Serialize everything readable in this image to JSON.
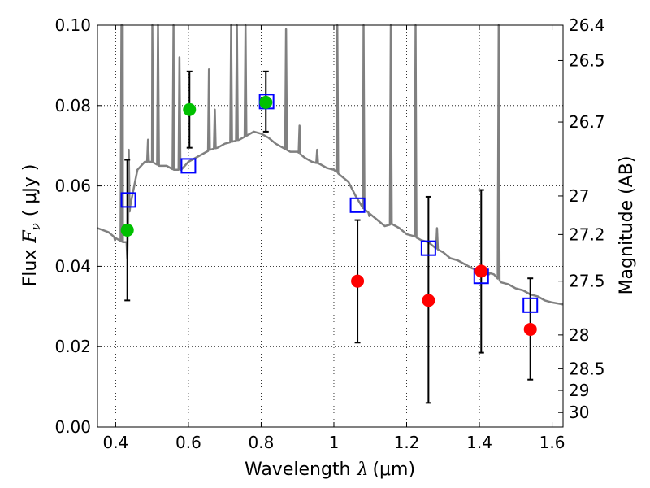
{
  "chart_data": {
    "type": "scatter",
    "xlabel_text": "Wavelength",
    "xlabel_symbol": "λ",
    "xlabel_unit": "(μm)",
    "ylabel_text": "Flux",
    "ylabel_symbol": "F",
    "ylabel_subscript": "ν",
    "ylabel_unit": "( μJy )",
    "y2label": "Magnitude (AB)",
    "xlim": [
      0.35,
      1.63
    ],
    "ylim": [
      0.0,
      0.1
    ],
    "xticks": [
      {
        "value": 0.4,
        "label": "0.4"
      },
      {
        "value": 0.6,
        "label": "0.6"
      },
      {
        "value": 0.8,
        "label": "0.8"
      },
      {
        "value": 1.0,
        "label": "1"
      },
      {
        "value": 1.2,
        "label": "1.2"
      },
      {
        "value": 1.4,
        "label": "1.4"
      },
      {
        "value": 1.6,
        "label": "1.6"
      }
    ],
    "yticks": [
      {
        "value": 0.0,
        "label": "0.00"
      },
      {
        "value": 0.02,
        "label": "0.02"
      },
      {
        "value": 0.04,
        "label": "0.04"
      },
      {
        "value": 0.06,
        "label": "0.06"
      },
      {
        "value": 0.08,
        "label": "0.08"
      },
      {
        "value": 0.1,
        "label": "0.10"
      }
    ],
    "y2ticks": [
      {
        "label": "26.4",
        "flux": 0.1
      },
      {
        "label": "26.5",
        "flux": 0.0912
      },
      {
        "label": "26.7",
        "flux": 0.0759
      },
      {
        "label": "27",
        "flux": 0.0575
      },
      {
        "label": "27.2",
        "flux": 0.0479
      },
      {
        "label": "27.5",
        "flux": 0.0363
      },
      {
        "label": "28",
        "flux": 0.0229
      },
      {
        "label": "28.5",
        "flux": 0.0145
      },
      {
        "label": "29",
        "flux": 0.0091
      },
      {
        "label": "30",
        "flux": 0.0036
      }
    ],
    "grid": true,
    "colors": {
      "model": "#808080",
      "green": "#00c000",
      "red": "#ff0000",
      "square": "#0000ff",
      "errorbar": "#000000"
    },
    "model_spectrum": {
      "continuum": [
        [
          0.35,
          0.0495
        ],
        [
          0.38,
          0.0485
        ],
        [
          0.4,
          0.047
        ],
        [
          0.42,
          0.046
        ],
        [
          0.43,
          0.046
        ],
        [
          0.44,
          0.055
        ],
        [
          0.46,
          0.064
        ],
        [
          0.48,
          0.066
        ],
        [
          0.5,
          0.066
        ],
        [
          0.52,
          0.065
        ],
        [
          0.54,
          0.065
        ],
        [
          0.56,
          0.064
        ],
        [
          0.58,
          0.064
        ],
        [
          0.6,
          0.066
        ],
        [
          0.62,
          0.067
        ],
        [
          0.64,
          0.068
        ],
        [
          0.66,
          0.069
        ],
        [
          0.68,
          0.0695
        ],
        [
          0.7,
          0.0705
        ],
        [
          0.72,
          0.071
        ],
        [
          0.74,
          0.0715
        ],
        [
          0.76,
          0.0725
        ],
        [
          0.78,
          0.0735
        ],
        [
          0.8,
          0.073
        ],
        [
          0.82,
          0.072
        ],
        [
          0.84,
          0.0705
        ],
        [
          0.86,
          0.0695
        ],
        [
          0.88,
          0.0685
        ],
        [
          0.9,
          0.0685
        ],
        [
          0.92,
          0.067
        ],
        [
          0.94,
          0.066
        ],
        [
          0.96,
          0.0655
        ],
        [
          0.98,
          0.0645
        ],
        [
          1.0,
          0.064
        ],
        [
          1.02,
          0.0625
        ],
        [
          1.04,
          0.061
        ],
        [
          1.06,
          0.0575
        ],
        [
          1.08,
          0.0545
        ],
        [
          1.1,
          0.053
        ],
        [
          1.12,
          0.0515
        ],
        [
          1.14,
          0.05
        ],
        [
          1.16,
          0.0505
        ],
        [
          1.18,
          0.0495
        ],
        [
          1.2,
          0.048
        ],
        [
          1.22,
          0.0475
        ],
        [
          1.24,
          0.0465
        ],
        [
          1.26,
          0.046
        ],
        [
          1.28,
          0.0445
        ],
        [
          1.3,
          0.0435
        ],
        [
          1.32,
          0.042
        ],
        [
          1.34,
          0.0415
        ],
        [
          1.36,
          0.0405
        ],
        [
          1.38,
          0.0395
        ],
        [
          1.4,
          0.039
        ],
        [
          1.42,
          0.0385
        ],
        [
          1.44,
          0.038
        ],
        [
          1.46,
          0.036
        ],
        [
          1.48,
          0.0355
        ],
        [
          1.5,
          0.0345
        ],
        [
          1.52,
          0.034
        ],
        [
          1.54,
          0.033
        ],
        [
          1.56,
          0.0325
        ],
        [
          1.58,
          0.0315
        ],
        [
          1.6,
          0.031
        ],
        [
          1.63,
          0.0305
        ]
      ],
      "emission_lines": [
        {
          "x": 0.416,
          "peak": 0.1
        },
        {
          "x": 0.4195,
          "peak": 0.1
        },
        {
          "x": 0.436,
          "peak": 0.069
        },
        {
          "x": 0.489,
          "peak": 0.0715
        },
        {
          "x": 0.5007,
          "peak": 0.1
        },
        {
          "x": 0.5165,
          "peak": 0.1
        },
        {
          "x": 0.559,
          "peak": 0.1
        },
        {
          "x": 0.5755,
          "peak": 0.092
        },
        {
          "x": 0.6565,
          "peak": 0.089
        },
        {
          "x": 0.6725,
          "peak": 0.079
        },
        {
          "x": 0.7175,
          "peak": 0.1
        },
        {
          "x": 0.7333,
          "peak": 0.1
        },
        {
          "x": 0.757,
          "peak": 0.1
        },
        {
          "x": 0.8685,
          "peak": 0.099
        },
        {
          "x": 0.9055,
          "peak": 0.075
        },
        {
          "x": 0.954,
          "peak": 0.069
        },
        {
          "x": 1.0095,
          "peak": 0.1
        },
        {
          "x": 1.0815,
          "peak": 0.1
        },
        {
          "x": 1.0975,
          "peak": 0.0525
        },
        {
          "x": 1.1565,
          "peak": 0.1
        },
        {
          "x": 1.2245,
          "peak": 0.1
        },
        {
          "x": 1.2835,
          "peak": 0.0495
        },
        {
          "x": 1.4265,
          "peak": 0.038
        },
        {
          "x": 1.453,
          "peak": 0.1
        }
      ],
      "absorption_lines": [
        {
          "x": 0.432,
          "depth": 0.042
        },
        {
          "x": 0.398,
          "depth": 0.0465
        }
      ]
    },
    "series": [
      {
        "name": "green photometry",
        "marker": "circle",
        "color_key": "green",
        "points": [
          {
            "x": 0.432,
            "y": 0.049,
            "err_low": 0.0315,
            "err_high": 0.0665
          },
          {
            "x": 0.603,
            "y": 0.079,
            "err_low": 0.0695,
            "err_high": 0.0885
          },
          {
            "x": 0.813,
            "y": 0.0808,
            "err_low": 0.0735,
            "err_high": 0.0885
          }
        ]
      },
      {
        "name": "red photometry",
        "marker": "circle",
        "color_key": "red",
        "points": [
          {
            "x": 1.065,
            "y": 0.0363,
            "err_low": 0.021,
            "err_high": 0.0515
          },
          {
            "x": 1.26,
            "y": 0.0315,
            "err_low": 0.006,
            "err_high": 0.0573
          },
          {
            "x": 1.405,
            "y": 0.0388,
            "err_low": 0.0185,
            "err_high": 0.059
          },
          {
            "x": 1.54,
            "y": 0.0243,
            "err_low": 0.0118,
            "err_high": 0.037
          }
        ]
      },
      {
        "name": "model synthetic photometry",
        "marker": "square",
        "color_key": "square",
        "points": [
          {
            "x": 0.435,
            "y": 0.0565
          },
          {
            "x": 0.6,
            "y": 0.065
          },
          {
            "x": 0.815,
            "y": 0.081
          },
          {
            "x": 1.065,
            "y": 0.0552
          },
          {
            "x": 1.26,
            "y": 0.0445
          },
          {
            "x": 1.405,
            "y": 0.0375
          },
          {
            "x": 1.54,
            "y": 0.0303
          }
        ]
      }
    ]
  }
}
